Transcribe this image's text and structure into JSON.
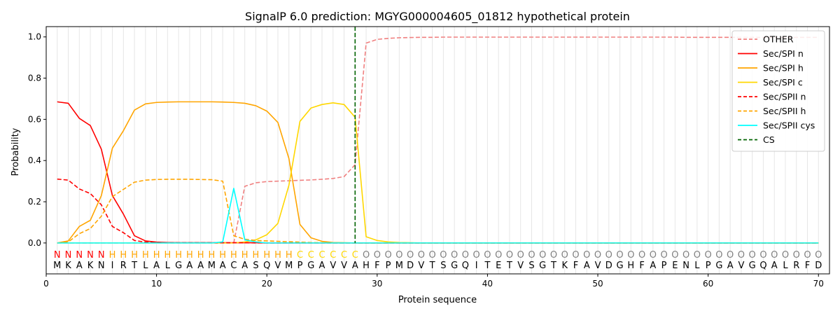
{
  "chart_data": {
    "type": "line",
    "title": "SignalP 6.0 prediction: MGYG000004605_01812 hypothetical protein",
    "xlabel": "Protein sequence",
    "ylabel": "Probability",
    "xlim": [
      0,
      71
    ],
    "ylim": [
      -0.15,
      1.05
    ],
    "xticks": [
      0,
      10,
      20,
      30,
      40,
      50,
      60,
      70
    ],
    "yticks": [
      0.0,
      0.2,
      0.4,
      0.6,
      0.8,
      1.0
    ],
    "ytick_labels": [
      "0.0",
      "0.2",
      "0.4",
      "0.6",
      "0.8",
      "1.0"
    ],
    "grid": "vertical lines at each residue",
    "legend_position": "top-right",
    "sequence": [
      "M",
      "K",
      "A",
      "K",
      "N",
      "I",
      "R",
      "T",
      "L",
      "A",
      "L",
      "G",
      "A",
      "A",
      "M",
      "A",
      "C",
      "A",
      "S",
      "Q",
      "V",
      "M",
      "P",
      "G",
      "A",
      "V",
      "V",
      "A",
      "H",
      "F",
      "P",
      "M",
      "D",
      "V",
      "T",
      "S",
      "G",
      "Q",
      "I",
      "T",
      "E",
      "T",
      "V",
      "S",
      "G",
      "T",
      "K",
      "F",
      "A",
      "V",
      "D",
      "G",
      "H",
      "F",
      "A",
      "P",
      "E",
      "N",
      "L",
      "P",
      "G",
      "A",
      "V",
      "G",
      "Q",
      "A",
      "L",
      "R",
      "F",
      "D"
    ],
    "region_labels": [
      "N",
      "N",
      "N",
      "N",
      "N",
      "H",
      "H",
      "H",
      "H",
      "H",
      "H",
      "H",
      "H",
      "H",
      "H",
      "H",
      "H",
      "H",
      "H",
      "H",
      "H",
      "H",
      "C",
      "C",
      "C",
      "C",
      "C",
      "C",
      "O",
      "O",
      "O",
      "O",
      "O",
      "O",
      "O",
      "O",
      "O",
      "O",
      "O",
      "O",
      "O",
      "O",
      "O",
      "O",
      "O",
      "O",
      "O",
      "O",
      "O",
      "O",
      "O",
      "O",
      "O",
      "O",
      "O",
      "O",
      "O",
      "O",
      "O",
      "O",
      "O",
      "O",
      "O",
      "O",
      "O",
      "O",
      "O",
      "O",
      "O",
      "O"
    ],
    "region_colors": {
      "N": "#ff0000",
      "H": "#ffa500",
      "C": "#ffd700",
      "O": "#808080"
    },
    "cleavage_site": 28,
    "series": [
      {
        "name": "OTHER",
        "color": "#f08080",
        "dash": true,
        "values": [
          0.0,
          0.0,
          0.0,
          0.0,
          0.0,
          0.0,
          0.0,
          0.0,
          0.0,
          0.0,
          0.0,
          0.0,
          0.0,
          0.0,
          0.0,
          0.0,
          0.0,
          0.275,
          0.292,
          0.298,
          0.3,
          0.302,
          0.304,
          0.306,
          0.309,
          0.313,
          0.322,
          0.38,
          0.97,
          0.988,
          0.993,
          0.996,
          0.997,
          0.998,
          0.998,
          0.999,
          0.999,
          0.999,
          0.999,
          0.999,
          0.999,
          0.999,
          0.999,
          0.999,
          0.999,
          0.999,
          0.999,
          0.999,
          0.999,
          0.999,
          0.999,
          0.999,
          0.999,
          0.999,
          0.999,
          0.999,
          0.999,
          0.998,
          0.998,
          0.998,
          0.998,
          0.998,
          0.998,
          0.998,
          0.998,
          0.998,
          0.998,
          0.998,
          0.998,
          0.998
        ]
      },
      {
        "name": "Sec/SPI n",
        "color": "#ff0000",
        "dash": false,
        "values": [
          0.685,
          0.678,
          0.605,
          0.57,
          0.455,
          0.23,
          0.14,
          0.035,
          0.01,
          0.004,
          0.002,
          0.001,
          0.001,
          0.001,
          0.001,
          0.001,
          0.001,
          0.001,
          0.001,
          0.0,
          0.0,
          0.0,
          0.0,
          0.0,
          0.0,
          0.0,
          0.0,
          0.0,
          0.0,
          0.0,
          0.0,
          0.0,
          0.0,
          0.0,
          0.0,
          0.0,
          0.0,
          0.0,
          0.0,
          0.0,
          0.0,
          0.0,
          0.0,
          0.0,
          0.0,
          0.0,
          0.0,
          0.0,
          0.0,
          0.0,
          0.0,
          0.0,
          0.0,
          0.0,
          0.0,
          0.0,
          0.0,
          0.0,
          0.0,
          0.0,
          0.0,
          0.0,
          0.0,
          0.0,
          0.0,
          0.0,
          0.0,
          0.0,
          0.0,
          0.0
        ]
      },
      {
        "name": "Sec/SPI h",
        "color": "#ffa500",
        "dash": false,
        "values": [
          0.0,
          0.01,
          0.08,
          0.11,
          0.23,
          0.46,
          0.545,
          0.645,
          0.675,
          0.682,
          0.684,
          0.685,
          0.685,
          0.685,
          0.685,
          0.684,
          0.682,
          0.678,
          0.666,
          0.64,
          0.585,
          0.41,
          0.09,
          0.025,
          0.008,
          0.002,
          0.001,
          0.0,
          0.0,
          0.0,
          0.0,
          0.0,
          0.0,
          0.0,
          0.0,
          0.0,
          0.0,
          0.0,
          0.0,
          0.0,
          0.0,
          0.0,
          0.0,
          0.0,
          0.0,
          0.0,
          0.0,
          0.0,
          0.0,
          0.0,
          0.0,
          0.0,
          0.0,
          0.0,
          0.0,
          0.0,
          0.0,
          0.0,
          0.0,
          0.0,
          0.0,
          0.0,
          0.0,
          0.0,
          0.0,
          0.0,
          0.0,
          0.0,
          0.0,
          0.0
        ]
      },
      {
        "name": "Sec/SPI c",
        "color": "#ffd700",
        "dash": false,
        "values": [
          0.0,
          0.0,
          0.0,
          0.0,
          0.0,
          0.0,
          0.0,
          0.0,
          0.0,
          0.0,
          0.0,
          0.0,
          0.0,
          0.0,
          0.0,
          0.0,
          0.0,
          0.005,
          0.015,
          0.04,
          0.095,
          0.28,
          0.59,
          0.655,
          0.672,
          0.68,
          0.672,
          0.61,
          0.03,
          0.012,
          0.005,
          0.002,
          0.001,
          0.0,
          0.0,
          0.0,
          0.0,
          0.0,
          0.0,
          0.0,
          0.0,
          0.0,
          0.0,
          0.0,
          0.0,
          0.0,
          0.0,
          0.0,
          0.0,
          0.0,
          0.0,
          0.0,
          0.0,
          0.0,
          0.0,
          0.0,
          0.0,
          0.0,
          0.0,
          0.0,
          0.0,
          0.0,
          0.0,
          0.0,
          0.0,
          0.0,
          0.0,
          0.0,
          0.0,
          0.0
        ]
      },
      {
        "name": "Sec/SPII n",
        "color": "#ff0000",
        "dash": true,
        "values": [
          0.31,
          0.305,
          0.262,
          0.24,
          0.185,
          0.08,
          0.05,
          0.012,
          0.004,
          0.002,
          0.001,
          0.001,
          0.001,
          0.001,
          0.001,
          0.001,
          0.001,
          0.001,
          0.0,
          0.0,
          0.0,
          0.0,
          0.0,
          0.0,
          0.0,
          0.0,
          0.0,
          0.0,
          0.0,
          0.0,
          0.0,
          0.0,
          0.0,
          0.0,
          0.0,
          0.0,
          0.0,
          0.0,
          0.0,
          0.0,
          0.0,
          0.0,
          0.0,
          0.0,
          0.0,
          0.0,
          0.0,
          0.0,
          0.0,
          0.0,
          0.0,
          0.0,
          0.0,
          0.0,
          0.0,
          0.0,
          0.0,
          0.0,
          0.0,
          0.0,
          0.0,
          0.0,
          0.0,
          0.0,
          0.0,
          0.0,
          0.0,
          0.0,
          0.0,
          0.0
        ]
      },
      {
        "name": "Sec/SPII h",
        "color": "#ffa500",
        "dash": true,
        "values": [
          0.0,
          0.005,
          0.045,
          0.07,
          0.13,
          0.225,
          0.26,
          0.295,
          0.305,
          0.308,
          0.309,
          0.309,
          0.309,
          0.308,
          0.307,
          0.3,
          0.035,
          0.018,
          0.012,
          0.01,
          0.008,
          0.006,
          0.004,
          0.002,
          0.001,
          0.0,
          0.0,
          0.0,
          0.0,
          0.0,
          0.0,
          0.0,
          0.0,
          0.0,
          0.0,
          0.0,
          0.0,
          0.0,
          0.0,
          0.0,
          0.0,
          0.0,
          0.0,
          0.0,
          0.0,
          0.0,
          0.0,
          0.0,
          0.0,
          0.0,
          0.0,
          0.0,
          0.0,
          0.0,
          0.0,
          0.0,
          0.0,
          0.0,
          0.0,
          0.0,
          0.0,
          0.0,
          0.0,
          0.0,
          0.0,
          0.0,
          0.0,
          0.0,
          0.0,
          0.0
        ]
      },
      {
        "name": "Sec/SPII cys",
        "color": "#00ffff",
        "dash": false,
        "values": [
          0.0,
          0.0,
          0.0,
          0.0,
          0.0,
          0.0,
          0.0,
          0.0,
          0.0,
          0.0,
          0.0,
          0.0,
          0.0,
          0.0,
          0.0,
          0.005,
          0.265,
          0.015,
          0.005,
          0.0,
          0.0,
          0.0,
          0.0,
          0.0,
          0.0,
          0.0,
          0.0,
          0.0,
          0.0,
          0.0,
          0.0,
          0.0,
          0.0,
          0.0,
          0.0,
          0.0,
          0.0,
          0.0,
          0.0,
          0.0,
          0.0,
          0.0,
          0.0,
          0.0,
          0.0,
          0.0,
          0.0,
          0.0,
          0.0,
          0.0,
          0.0,
          0.0,
          0.0,
          0.0,
          0.0,
          0.0,
          0.0,
          0.0,
          0.0,
          0.0,
          0.0,
          0.0,
          0.0,
          0.0,
          0.0,
          0.0,
          0.0,
          0.0,
          0.0,
          0.0
        ]
      }
    ],
    "cs_series": {
      "name": "CS",
      "color": "#006400",
      "dash": true
    }
  }
}
